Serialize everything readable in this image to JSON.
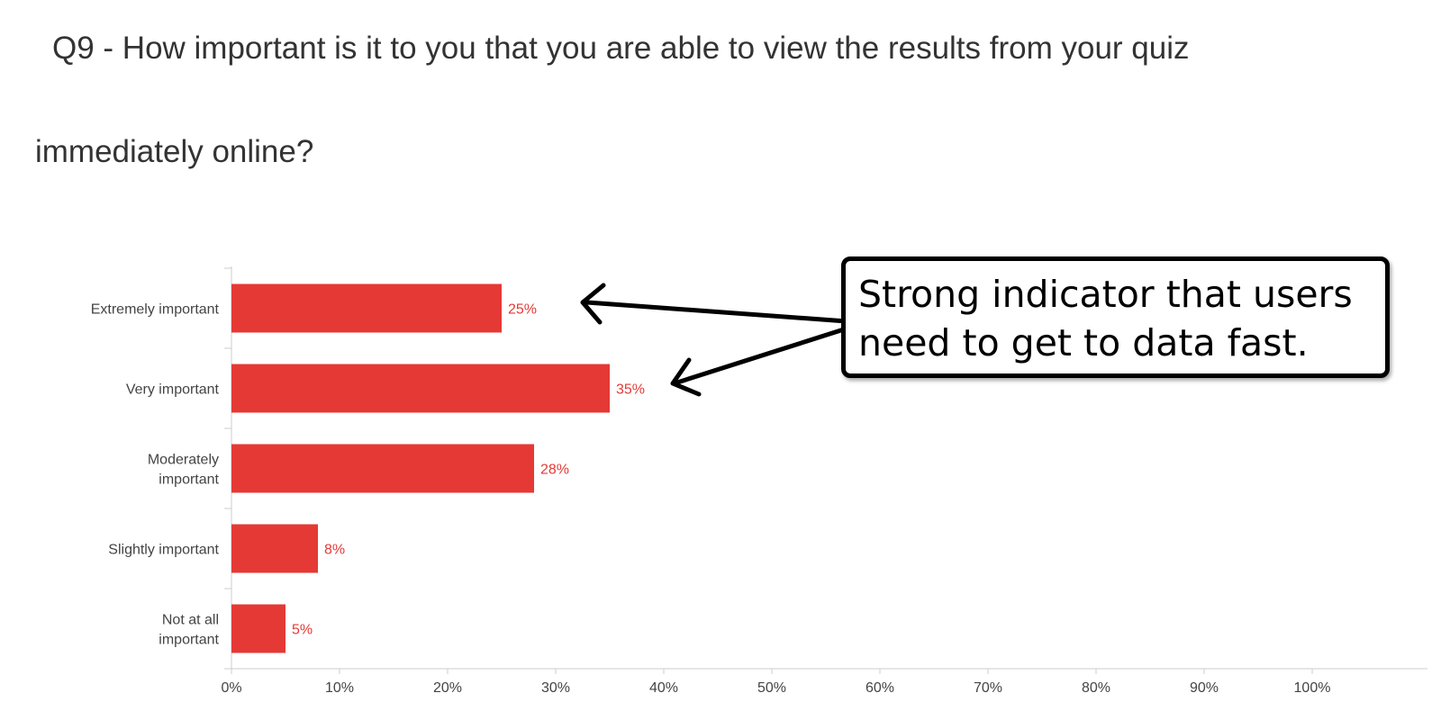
{
  "question": {
    "line1": "Q9 - How important is it to you that you are able to view the results from your quiz",
    "line2": "immediately online?"
  },
  "annotation": {
    "text": "Strong indicator that users\nneed to get to data fast."
  },
  "colors": {
    "bar": "#e53935",
    "value_label": "#e53935",
    "axis": "#cccccc",
    "annotation_border": "#000000"
  },
  "chart_data": {
    "type": "bar",
    "orientation": "horizontal",
    "title": "",
    "xlabel": "",
    "ylabel": "",
    "categories": [
      [
        "Extremely important"
      ],
      [
        "Very important"
      ],
      [
        "Moderately",
        "important"
      ],
      [
        "Slightly important"
      ],
      [
        "Not at all",
        "important"
      ]
    ],
    "values": [
      25,
      35,
      28,
      8,
      5
    ],
    "value_labels": [
      "25%",
      "35%",
      "28%",
      "8%",
      "5%"
    ],
    "xlim": [
      0,
      110
    ],
    "xticks": [
      0,
      10,
      20,
      30,
      40,
      50,
      60,
      70,
      80,
      90,
      100
    ],
    "xtick_labels": [
      "0%",
      "10%",
      "20%",
      "30%",
      "40%",
      "50%",
      "60%",
      "70%",
      "80%",
      "90%",
      "100%"
    ],
    "grid": false
  }
}
